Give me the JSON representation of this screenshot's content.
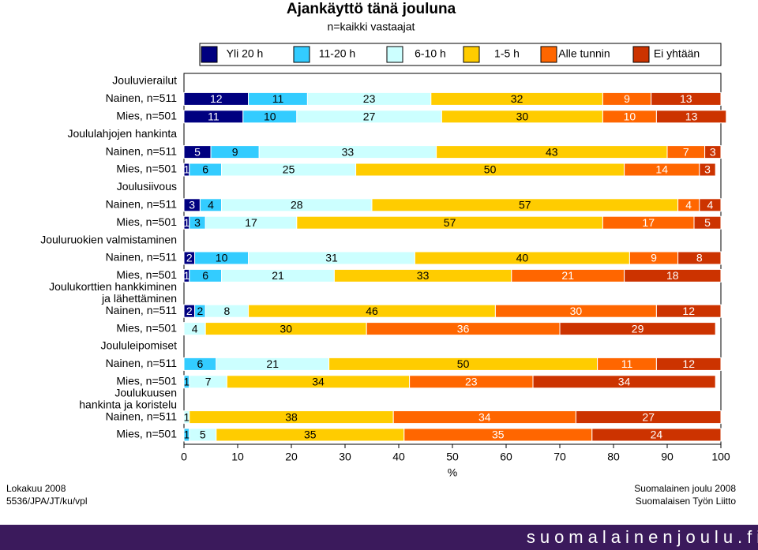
{
  "chart_data": {
    "type": "bar",
    "orientation": "horizontal",
    "stacked": true,
    "title": "Ajankäyttö tänä jouluna",
    "subtitle": "n=kaikki vastaajat",
    "groups": [
      {
        "name": [
          "Jouluvierailut"
        ],
        "categories": [
          "Nainen, n=511",
          "Mies, n=501"
        ]
      },
      {
        "name": [
          "Joululahjojen hankinta"
        ],
        "categories": [
          "Nainen, n=511",
          "Mies, n=501"
        ]
      },
      {
        "name": [
          "Joulusiivous"
        ],
        "categories": [
          "Nainen, n=511",
          "Mies, n=501"
        ]
      },
      {
        "name": [
          "Jouluruokien valmistaminen"
        ],
        "categories": [
          "Nainen, n=511",
          "Mies, n=501"
        ]
      },
      {
        "name": [
          "Joulukorttien hankkiminen",
          "ja lähettäminen"
        ],
        "categories": [
          "Nainen, n=511",
          "Mies, n=501"
        ]
      },
      {
        "name": [
          "Joululeipomiset"
        ],
        "categories": [
          "Nainen, n=511",
          "Mies, n=501"
        ]
      },
      {
        "name": [
          "Joulukuusen",
          "hankinta ja koristelu"
        ],
        "categories": [
          "Nainen, n=511",
          "Mies, n=501"
        ]
      }
    ],
    "series": [
      {
        "name": "Yli 20 h",
        "color": "#000080",
        "values": [
          12,
          11,
          5,
          1,
          3,
          1,
          2,
          1,
          2,
          null,
          null,
          null,
          null,
          null
        ]
      },
      {
        "name": "11-20 h",
        "color": "#33CCFF",
        "values": [
          11,
          10,
          9,
          6,
          4,
          3,
          10,
          6,
          2,
          null,
          6,
          1,
          null,
          1
        ]
      },
      {
        "name": "6-10 h",
        "color": "#CCFFFF",
        "values": [
          23,
          27,
          33,
          25,
          28,
          17,
          31,
          21,
          8,
          4,
          21,
          7,
          1,
          5
        ]
      },
      {
        "name": "1-5 h",
        "color": "#FFCC00",
        "values": [
          32,
          30,
          43,
          50,
          57,
          57,
          40,
          33,
          46,
          30,
          50,
          34,
          38,
          35
        ]
      },
      {
        "name": "Alle tunnin",
        "color": "#FF6600",
        "values": [
          9,
          10,
          7,
          14,
          4,
          17,
          9,
          21,
          30,
          36,
          11,
          23,
          34,
          35
        ]
      },
      {
        "name": "Ei yhtään",
        "color": "#CC3300",
        "values": [
          13,
          13,
          3,
          3,
          4,
          5,
          8,
          18,
          12,
          29,
          12,
          34,
          27,
          24
        ]
      }
    ],
    "xlim": [
      0,
      100
    ],
    "xticks": [
      0,
      10,
      20,
      30,
      40,
      50,
      60,
      70,
      80,
      90,
      100
    ],
    "xlabel": "%"
  },
  "footer": {
    "left": [
      "Lokakuu 2008",
      "5536/JPA/JT/ku/vpl"
    ],
    "right": [
      "Suomalainen joulu 2008",
      "Suomalaisen Työn Liitto"
    ],
    "banner": "suomalainenjoulu.fi"
  }
}
